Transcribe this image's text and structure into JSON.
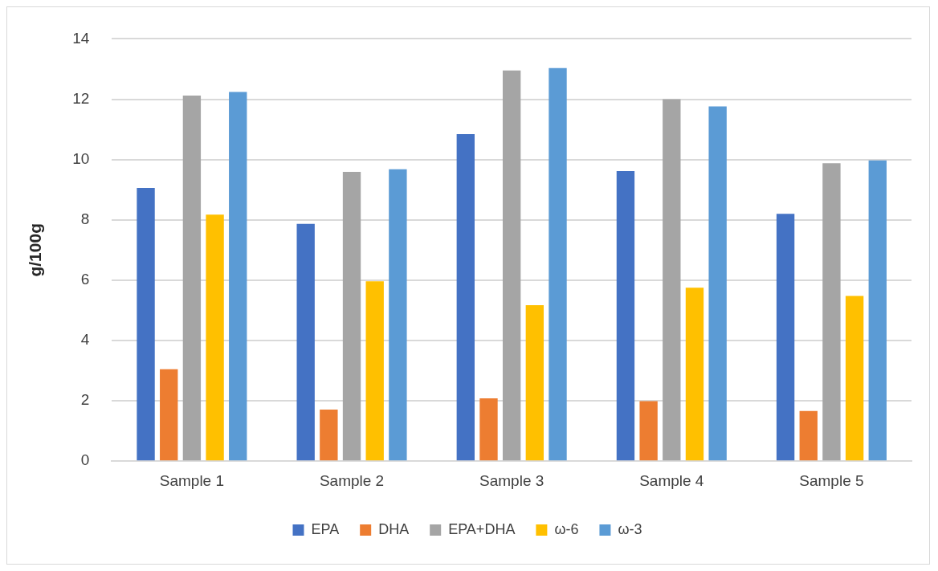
{
  "chart_data": {
    "type": "bar",
    "ylabel": "g/100g",
    "categories": [
      "Sample 1",
      "Sample 2",
      "Sample 3",
      "Sample 4",
      "Sample 5"
    ],
    "series": [
      {
        "name": "EPA",
        "color": "#4472c4",
        "values": [
          9.06,
          7.87,
          10.84,
          9.62,
          8.2
        ]
      },
      {
        "name": "DHA",
        "color": "#ed7d31",
        "values": [
          3.05,
          1.71,
          2.08,
          1.99,
          1.66
        ]
      },
      {
        "name": "EPA+DHA",
        "color": "#a5a5a5",
        "values": [
          12.12,
          9.59,
          12.95,
          12.0,
          9.88
        ]
      },
      {
        "name": "ω-6",
        "color": "#ffc000",
        "values": [
          8.17,
          5.96,
          5.17,
          5.75,
          5.48
        ]
      },
      {
        "name": "ω-3",
        "color": "#5b9bd5",
        "values": [
          12.24,
          9.68,
          13.03,
          11.76,
          9.97
        ]
      }
    ],
    "ylim": [
      0,
      14
    ],
    "yticks": [
      0,
      2,
      4,
      6,
      8,
      10,
      12,
      14
    ],
    "grid": "y",
    "legend": "bottom"
  }
}
